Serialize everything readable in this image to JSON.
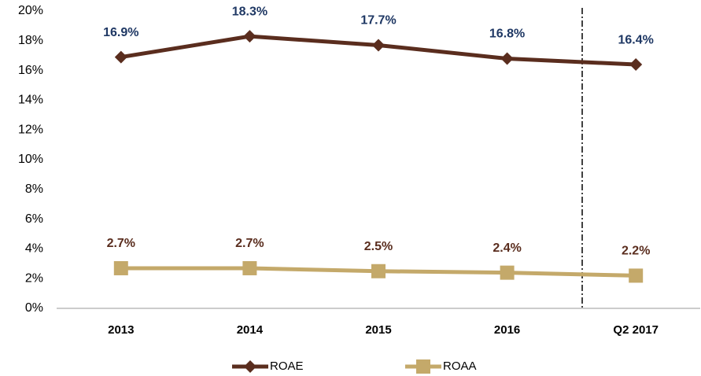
{
  "chart_data": {
    "type": "line",
    "categories": [
      "2013",
      "2014",
      "2015",
      "2016",
      "Q2 2017"
    ],
    "series": [
      {
        "name": "ROAE",
        "color": "#5a2d1e",
        "marker": "diamond",
        "label_color": "#1f3864",
        "values": [
          16.9,
          18.3,
          17.7,
          16.8,
          16.4
        ],
        "value_labels": [
          "16.9%",
          "18.3%",
          "17.7%",
          "16.8%",
          "16.4%"
        ]
      },
      {
        "name": "ROAA",
        "color": "#c4a96a",
        "marker": "square",
        "label_color": "#5a2d1e",
        "values": [
          2.7,
          2.7,
          2.5,
          2.4,
          2.2
        ],
        "value_labels": [
          "2.7%",
          "2.7%",
          "2.5%",
          "2.4%",
          "2.2%"
        ]
      }
    ],
    "ylim": [
      0,
      20
    ],
    "yticks": [
      {
        "value": 0,
        "label": "0%"
      },
      {
        "value": 2,
        "label": "2%"
      },
      {
        "value": 4,
        "label": "4%"
      },
      {
        "value": 6,
        "label": "6%"
      },
      {
        "value": 8,
        "label": "8%"
      },
      {
        "value": 10,
        "label": "10%"
      },
      {
        "value": 12,
        "label": "12%"
      },
      {
        "value": 14,
        "label": "14%"
      },
      {
        "value": 16,
        "label": "16%"
      },
      {
        "value": 18,
        "label": "18%"
      },
      {
        "value": 20,
        "label": "20%"
      }
    ],
    "grid": false,
    "legend": "bottom"
  }
}
